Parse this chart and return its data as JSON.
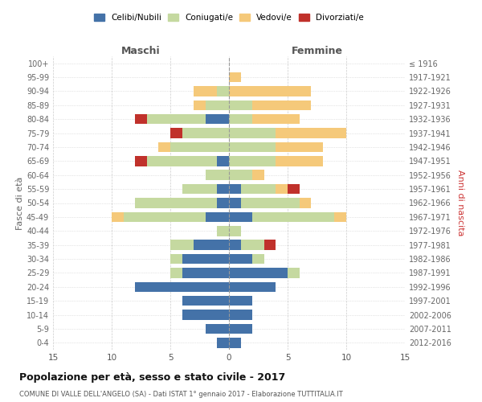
{
  "age_groups": [
    "100+",
    "95-99",
    "90-94",
    "85-89",
    "80-84",
    "75-79",
    "70-74",
    "65-69",
    "60-64",
    "55-59",
    "50-54",
    "45-49",
    "40-44",
    "35-39",
    "30-34",
    "25-29",
    "20-24",
    "15-19",
    "10-14",
    "5-9",
    "0-4"
  ],
  "birth_years": [
    "≤ 1916",
    "1917-1921",
    "1922-1926",
    "1927-1931",
    "1932-1936",
    "1937-1941",
    "1942-1946",
    "1947-1951",
    "1952-1956",
    "1957-1961",
    "1962-1966",
    "1967-1971",
    "1972-1976",
    "1977-1981",
    "1982-1986",
    "1987-1991",
    "1992-1996",
    "1997-2001",
    "2002-2006",
    "2007-2011",
    "2012-2016"
  ],
  "maschi": {
    "celibi": [
      0,
      0,
      0,
      0,
      2,
      0,
      0,
      1,
      0,
      1,
      1,
      2,
      0,
      3,
      4,
      4,
      8,
      4,
      4,
      2,
      1
    ],
    "coniugati": [
      0,
      0,
      1,
      2,
      5,
      4,
      5,
      6,
      2,
      3,
      7,
      7,
      1,
      2,
      1,
      1,
      0,
      0,
      0,
      0,
      0
    ],
    "vedovi": [
      0,
      0,
      2,
      1,
      0,
      0,
      1,
      0,
      0,
      0,
      0,
      1,
      0,
      0,
      0,
      0,
      0,
      0,
      0,
      0,
      0
    ],
    "divorziati": [
      0,
      0,
      0,
      0,
      1,
      1,
      0,
      1,
      0,
      0,
      0,
      0,
      0,
      0,
      0,
      0,
      0,
      0,
      0,
      0,
      0
    ]
  },
  "femmine": {
    "nubili": [
      0,
      0,
      0,
      0,
      0,
      0,
      0,
      0,
      0,
      1,
      1,
      2,
      0,
      1,
      2,
      5,
      4,
      2,
      2,
      2,
      1
    ],
    "coniugate": [
      0,
      0,
      0,
      2,
      2,
      4,
      4,
      4,
      2,
      3,
      5,
      7,
      1,
      2,
      1,
      1,
      0,
      0,
      0,
      0,
      0
    ],
    "vedove": [
      0,
      1,
      7,
      5,
      4,
      6,
      4,
      4,
      1,
      1,
      1,
      1,
      0,
      0,
      0,
      0,
      0,
      0,
      0,
      0,
      0
    ],
    "divorziate": [
      0,
      0,
      0,
      0,
      0,
      0,
      0,
      0,
      0,
      1,
      0,
      0,
      0,
      1,
      0,
      0,
      0,
      0,
      0,
      0,
      0
    ]
  },
  "colors": {
    "celibi": "#4472a8",
    "coniugati": "#c5d9a0",
    "vedovi": "#f5c97a",
    "divorziati": "#c0312b"
  },
  "xlim": 15,
  "title": "Popolazione per età, sesso e stato civile - 2017",
  "subtitle": "COMUNE DI VALLE DELL'ANGELO (SA) - Dati ISTAT 1° gennaio 2017 - Elaborazione TUTTITALIA.IT",
  "ylabel_left": "Fasce di età",
  "ylabel_right": "Anni di nascita",
  "xlabel_maschi": "Maschi",
  "xlabel_femmine": "Femmine",
  "legend_labels": [
    "Celibi/Nubili",
    "Coniugati/e",
    "Vedovi/e",
    "Divorziati/e"
  ],
  "bg_color": "#ffffff",
  "grid_color": "#cccccc"
}
